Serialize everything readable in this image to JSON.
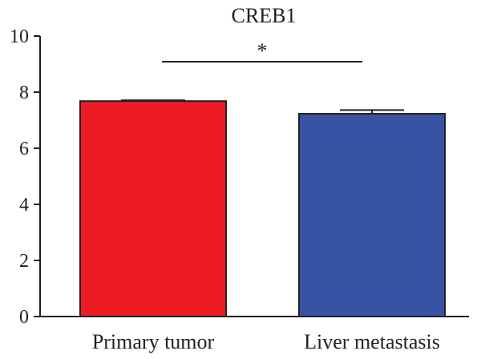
{
  "chart_data": {
    "type": "bar",
    "title": "CREB1",
    "xlabel": "",
    "ylabel": "",
    "categories": [
      "Primary tumor",
      "Liver metastasis"
    ],
    "values": [
      7.68,
      7.23
    ],
    "error": [
      0.03,
      0.13
    ],
    "ylim": [
      0,
      10
    ],
    "yticks": [
      0,
      2,
      4,
      6,
      8,
      10
    ],
    "colors": [
      "#ed1c24",
      "#3953a4"
    ],
    "significance": {
      "between": [
        0,
        1
      ],
      "label": "*"
    },
    "grid": false
  }
}
